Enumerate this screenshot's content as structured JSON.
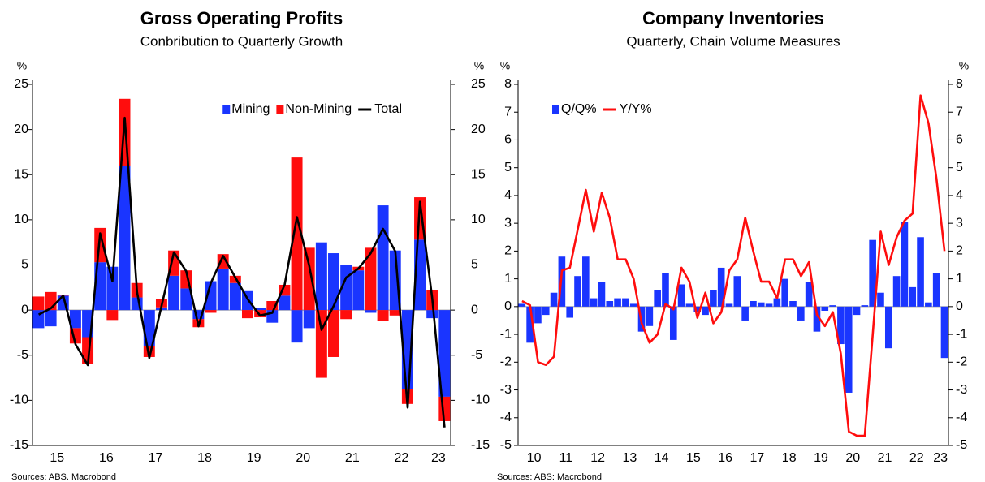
{
  "chart_data": [
    {
      "type": "bar",
      "stacked": true,
      "title": "Gross Operating Profits",
      "subtitle": "Conbribution to Quarterly Growth",
      "ylabel": "%",
      "y2label": "%",
      "source": "Sources: ABS. Macrobond",
      "legend": "upper right",
      "categories": [
        null,
        null,
        "15",
        null,
        null,
        null,
        "16",
        null,
        null,
        null,
        "17",
        null,
        null,
        null,
        "18",
        null,
        null,
        null,
        "19",
        null,
        null,
        null,
        "20",
        null,
        null,
        null,
        "21",
        null,
        null,
        null,
        "22",
        null,
        null,
        "23"
      ],
      "series": [
        {
          "name": "Mining",
          "kind": "bar",
          "color": "#1a35ff",
          "values": [
            -2,
            -1.8,
            1.6,
            -2,
            -3,
            5.3,
            4.8,
            16,
            1.4,
            -4,
            0.3,
            3.8,
            2.4,
            -1,
            3.2,
            4.6,
            3,
            2.1,
            0.2,
            -1.4,
            1.6,
            -3.6,
            -2,
            7.5,
            6.3,
            5,
            4.4,
            -0.3,
            11.6,
            6.6,
            -8.8,
            7.8,
            -0.9,
            -9.6
          ]
        },
        {
          "name": "Non-Mining",
          "kind": "bar",
          "color": "#ff0d0d",
          "values": [
            1.5,
            2,
            0.1,
            -1.7,
            -3,
            3.8,
            -1.1,
            7.4,
            1.6,
            -1.2,
            0.9,
            2.8,
            2,
            -0.9,
            -0.3,
            1.6,
            0.8,
            -0.9,
            -0.8,
            1,
            1.2,
            16.9,
            6.9,
            -7.5,
            -5.2,
            -1,
            0.4,
            6.9,
            -1.2,
            -0.6,
            -1.6,
            4.7,
            2.2,
            -2.7
          ]
        },
        {
          "name": "Total",
          "kind": "line",
          "color": "#000000",
          "values": [
            -0.5,
            0.2,
            1.6,
            -3.8,
            -6.1,
            8.5,
            3.2,
            21.3,
            2,
            -5.3,
            0.5,
            6.4,
            4.3,
            -1.8,
            3,
            6,
            3.6,
            1.2,
            -0.6,
            -0.3,
            2.8,
            10.3,
            4.9,
            -2.2,
            0.5,
            3.6,
            4.6,
            6.3,
            9,
            6.5,
            -10.8,
            12,
            1.3,
            -13
          ]
        }
      ],
      "ylim": [
        -15,
        25
      ],
      "yticks": [
        -15,
        -10,
        -5,
        0,
        5,
        10,
        15,
        20,
        25
      ],
      "y2lim": [
        -15,
        25
      ],
      "y2ticks": [
        -15,
        -10,
        -5,
        0,
        5,
        10,
        15,
        20,
        25
      ]
    },
    {
      "type": "bar",
      "stacked": false,
      "title": "Company Inventories",
      "subtitle": "Quarterly, Chain Volume Measures",
      "ylabel": "%",
      "y2label": "%",
      "source": "Sources: ABS: Macrobond",
      "legend": "upper left",
      "categories": [
        null,
        null,
        "10",
        null,
        null,
        null,
        "11",
        null,
        null,
        null,
        "12",
        null,
        null,
        null,
        "13",
        null,
        null,
        null,
        "14",
        null,
        null,
        null,
        "15",
        null,
        null,
        null,
        "16",
        null,
        null,
        null,
        "17",
        null,
        null,
        null,
        "18",
        null,
        null,
        null,
        "19",
        null,
        null,
        null,
        "20",
        null,
        null,
        null,
        "21",
        null,
        null,
        null,
        "22",
        null,
        null,
        "23"
      ],
      "series": [
        {
          "name": "Q/Q%",
          "kind": "bar",
          "color": "#1a35ff",
          "values": [
            0.1,
            -1.3,
            -0.6,
            -0.3,
            0.5,
            1.8,
            -0.4,
            1.1,
            1.8,
            0.3,
            0.9,
            0.2,
            0.3,
            0.3,
            0.1,
            -0.9,
            -0.7,
            0.6,
            1.2,
            -1.2,
            0.8,
            0.1,
            -0.2,
            -0.3,
            0.6,
            1.4,
            0.1,
            1.1,
            -0.5,
            0.2,
            0.15,
            0.1,
            0.3,
            1,
            0.2,
            -0.5,
            0.9,
            -0.9,
            -0.15,
            0.05,
            -1.35,
            -3.1,
            -0.3,
            0.05,
            2.4,
            0.5,
            -1.5,
            1.1,
            3.05,
            0.7,
            2.5,
            0.15,
            1.2,
            -1.85
          ]
        },
        {
          "name": "Y/Y%",
          "kind": "line",
          "color": "#ff0d0d",
          "values": [
            0.2,
            0.05,
            -2,
            -2.1,
            -1.8,
            1.3,
            1.4,
            2.8,
            4.2,
            2.7,
            4.1,
            3.2,
            1.7,
            1.7,
            1,
            -0.6,
            -1.3,
            -1,
            0.1,
            -0.1,
            1.4,
            0.9,
            -0.4,
            0.5,
            -0.6,
            -0.2,
            1.3,
            1.7,
            3.2,
            2,
            0.9,
            0.9,
            0.3,
            1.7,
            1.7,
            1.1,
            1.6,
            -0.3,
            -0.7,
            -0.2,
            -1.7,
            -4.5,
            -4.65,
            -4.65,
            -1,
            2.7,
            1.5,
            2.5,
            3.1,
            3.35,
            7.6,
            6.6,
            4.6,
            2
          ]
        }
      ],
      "ylim": [
        -5,
        8
      ],
      "yticks": [
        -5,
        -4,
        -3,
        -2,
        -1,
        0,
        1,
        2,
        3,
        4,
        5,
        6,
        7,
        8
      ],
      "y2lim": [
        -5,
        8
      ],
      "y2ticks": [
        -5,
        -4,
        -3,
        -2,
        -1,
        0,
        1,
        2,
        3,
        4,
        5,
        6,
        7,
        8
      ]
    }
  ]
}
